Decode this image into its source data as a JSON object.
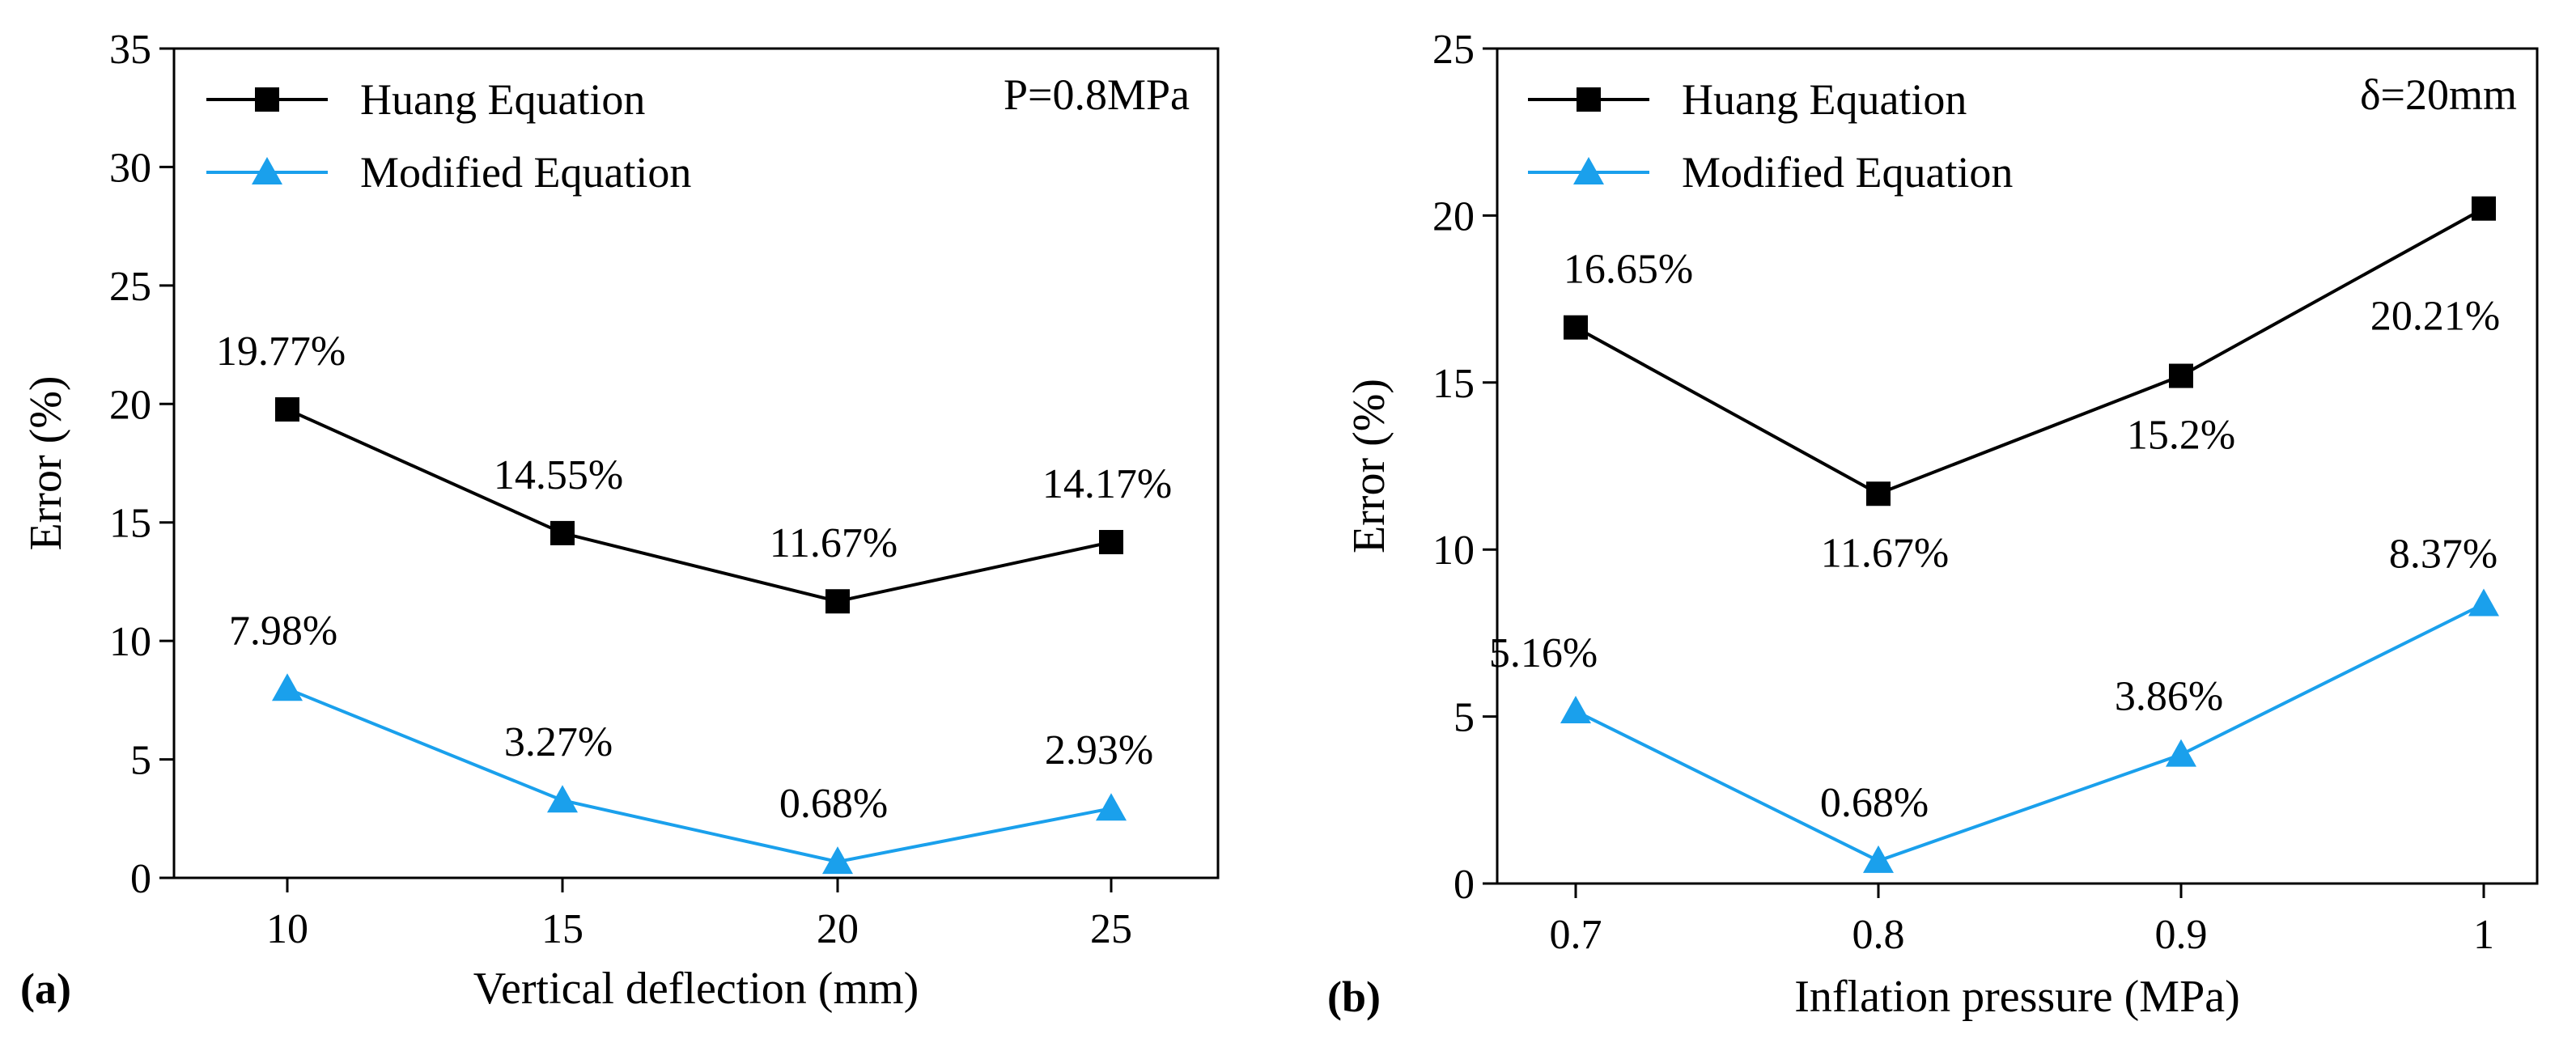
{
  "chart_data": [
    {
      "type": "line",
      "panel_label": "(a)",
      "xlabel": "Vertical deflection (mm)",
      "ylabel": "Error (%)",
      "annotation": "P=0.8MPa",
      "x": [
        10,
        15,
        20,
        25
      ],
      "x_tick_labels": [
        "10",
        "15",
        "20",
        "25"
      ],
      "ylim": [
        0,
        35
      ],
      "y_tick_labels": [
        "0",
        "5",
        "10",
        "15",
        "20",
        "25",
        "30",
        "35"
      ],
      "grid": false,
      "legend_position": "top-left",
      "series": [
        {
          "name": "Huang Equation",
          "marker": "square",
          "color": "#000000",
          "values": [
            19.77,
            14.55,
            11.67,
            14.17
          ],
          "labels": [
            "19.77%",
            "14.55%",
            "11.67%",
            "14.17%"
          ]
        },
        {
          "name": "Modified Equation",
          "marker": "triangle",
          "color": "#1aa0ec",
          "values": [
            7.98,
            3.27,
            0.68,
            2.93
          ],
          "labels": [
            "7.98%",
            "3.27%",
            "0.68%",
            "2.93%"
          ]
        }
      ]
    },
    {
      "type": "line",
      "panel_label": "(b)",
      "xlabel": "Inflation pressure (MPa)",
      "ylabel": "Error (%)",
      "annotation": "δ=20mm",
      "x": [
        0.7,
        0.8,
        0.9,
        1.0
      ],
      "x_tick_labels": [
        "0.7",
        "0.8",
        "0.9",
        "1"
      ],
      "ylim": [
        0,
        25
      ],
      "y_tick_labels": [
        "0",
        "5",
        "10",
        "15",
        "20",
        "25"
      ],
      "grid": false,
      "legend_position": "top-left",
      "series": [
        {
          "name": "Huang Equation",
          "marker": "square",
          "color": "#000000",
          "values": [
            16.65,
            11.67,
            15.2,
            20.21
          ],
          "labels": [
            "16.65%",
            "11.67%",
            "15.2%",
            "20.21%"
          ]
        },
        {
          "name": "Modified Equation",
          "marker": "triangle",
          "color": "#1aa0ec",
          "values": [
            5.16,
            0.68,
            3.86,
            8.37
          ],
          "labels": [
            "5.16%",
            "0.68%",
            "3.86%",
            "8.37%"
          ]
        }
      ]
    }
  ]
}
